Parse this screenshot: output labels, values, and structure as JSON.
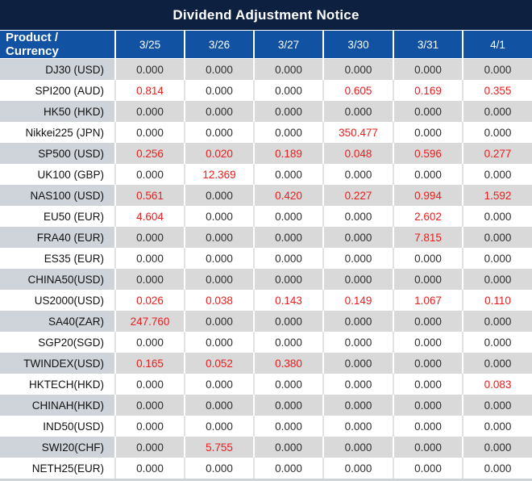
{
  "title": "Dividend Adjustment Notice",
  "colors": {
    "title_bar_bg": "#0d203f",
    "header_bg": "#1152a2",
    "row_gray": "#d9d9d9",
    "label_gray": "#cfd4db",
    "red_value": "#ee1b1b",
    "zero_value": "#2e2e2e"
  },
  "table": {
    "product_header": "Product / Currency",
    "date_headers": [
      "3/25",
      "3/26",
      "3/27",
      "3/30",
      "3/31",
      "4/1"
    ],
    "rows": [
      {
        "label": "DJ30 (USD)",
        "values": [
          "0.000",
          "0.000",
          "0.000",
          "0.000",
          "0.000",
          "0.000"
        ]
      },
      {
        "label": "SPI200 (AUD)",
        "values": [
          "0.814",
          "0.000",
          "0.000",
          "0.605",
          "0.169",
          "0.355"
        ]
      },
      {
        "label": "HK50 (HKD)",
        "values": [
          "0.000",
          "0.000",
          "0.000",
          "0.000",
          "0.000",
          "0.000"
        ]
      },
      {
        "label": "Nikkei225 (JPN)",
        "values": [
          "0.000",
          "0.000",
          "0.000",
          "350.477",
          "0.000",
          "0.000"
        ]
      },
      {
        "label": "SP500 (USD)",
        "values": [
          "0.256",
          "0.020",
          "0.189",
          "0.048",
          "0.596",
          "0.277"
        ]
      },
      {
        "label": "UK100 (GBP)",
        "values": [
          "0.000",
          "12.369",
          "0.000",
          "0.000",
          "0.000",
          "0.000"
        ]
      },
      {
        "label": "NAS100 (USD)",
        "values": [
          "0.561",
          "0.000",
          "0.420",
          "0.227",
          "0.994",
          "1.592"
        ]
      },
      {
        "label": "EU50 (EUR)",
        "values": [
          "4.604",
          "0.000",
          "0.000",
          "0.000",
          "2.602",
          "0.000"
        ]
      },
      {
        "label": "FRA40 (EUR)",
        "values": [
          "0.000",
          "0.000",
          "0.000",
          "0.000",
          "7.815",
          "0.000"
        ]
      },
      {
        "label": "ES35 (EUR)",
        "values": [
          "0.000",
          "0.000",
          "0.000",
          "0.000",
          "0.000",
          "0.000"
        ]
      },
      {
        "label": "CHINA50(USD)",
        "values": [
          "0.000",
          "0.000",
          "0.000",
          "0.000",
          "0.000",
          "0.000"
        ]
      },
      {
        "label": "US2000(USD)",
        "values": [
          "0.026",
          "0.038",
          "0.143",
          "0.149",
          "1.067",
          "0.110"
        ]
      },
      {
        "label": "SA40(ZAR)",
        "values": [
          "247.760",
          "0.000",
          "0.000",
          "0.000",
          "0.000",
          "0.000"
        ]
      },
      {
        "label": "SGP20(SGD)",
        "values": [
          "0.000",
          "0.000",
          "0.000",
          "0.000",
          "0.000",
          "0.000"
        ]
      },
      {
        "label": "TWINDEX(USD)",
        "values": [
          "0.165",
          "0.052",
          "0.380",
          "0.000",
          "0.000",
          "0.000"
        ]
      },
      {
        "label": "HKTECH(HKD)",
        "values": [
          "0.000",
          "0.000",
          "0.000",
          "0.000",
          "0.000",
          "0.083"
        ]
      },
      {
        "label": "CHINAH(HKD)",
        "values": [
          "0.000",
          "0.000",
          "0.000",
          "0.000",
          "0.000",
          "0.000"
        ]
      },
      {
        "label": "IND50(USD)",
        "values": [
          "0.000",
          "0.000",
          "0.000",
          "0.000",
          "0.000",
          "0.000"
        ]
      },
      {
        "label": "SWI20(CHF)",
        "values": [
          "0.000",
          "5.755",
          "0.000",
          "0.000",
          "0.000",
          "0.000"
        ]
      },
      {
        "label": "NETH25(EUR)",
        "values": [
          "0.000",
          "0.000",
          "0.000",
          "0.000",
          "0.000",
          "0.000"
        ]
      }
    ]
  }
}
